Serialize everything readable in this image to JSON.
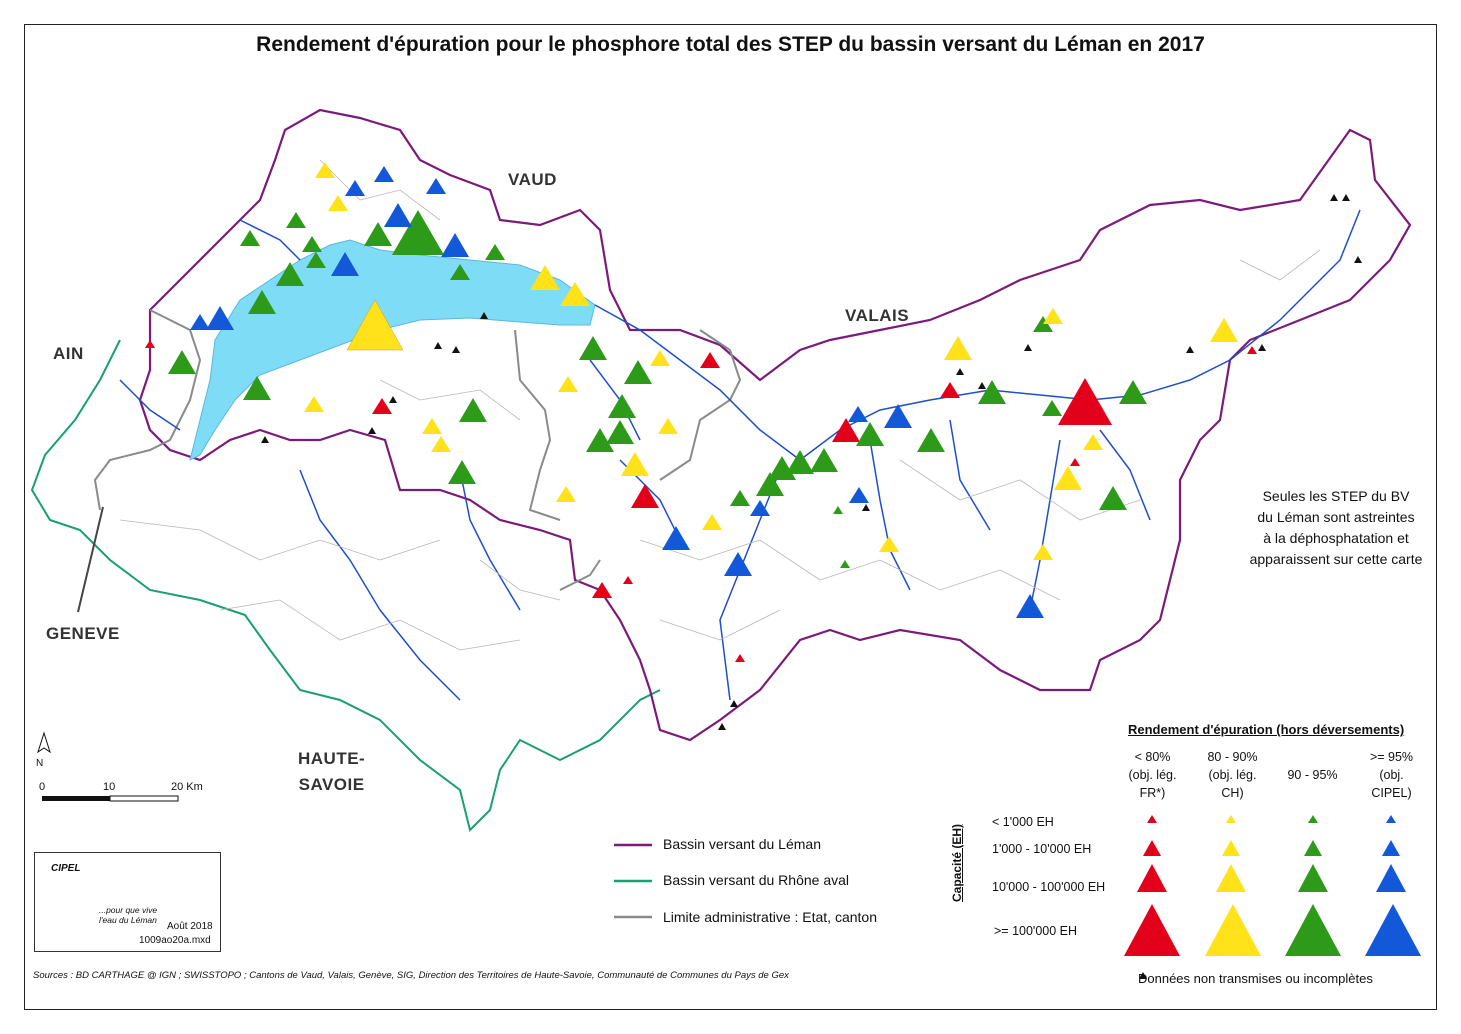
{
  "title": "Rendement d'épuration pour le phosphore total des STEP du bassin versant du Léman en 2017",
  "regions": {
    "vaud": "VAUD",
    "valais": "VALAIS",
    "ain": "AIN",
    "geneve": "GENEVE",
    "haute_savoie": "HAUTE-\nSAVOIE"
  },
  "note": "Seules les STEP du BV\ndu Léman sont astreintes\nà la déphosphatation et\napparaissent sur cette carte",
  "line_legend": {
    "basin_leman": "Bassin versant du Léman",
    "basin_rhone": "Bassin versant du Rhône aval",
    "admin_limit": "Limite administrative : Etat, canton"
  },
  "symbol_legend": {
    "title": "Rendement d'épuration (hors déversements)",
    "axis_label": "Capacité (EH)",
    "categories": [
      {
        "label": "< 80%\n(obj. lég.\nFR*)",
        "color": "#e2001a"
      },
      {
        "label": "80 - 90%\n(obj. lég.\nCH)",
        "color": "#ffe21a"
      },
      {
        "label": "90 - 95%",
        "color": "#2e9a1a"
      },
      {
        "label": ">= 95%\n(obj.\nCIPEL)",
        "color": "#1258d8"
      }
    ],
    "capacities": [
      "< 1'000 EH",
      "1'000 - 10'000 EH",
      "10'000 - 100'000 EH",
      ">= 100'000 EH"
    ],
    "no_data": "Données non transmises ou incomplètes"
  },
  "scale": {
    "ticks": [
      "0",
      "10",
      "20 Km"
    ]
  },
  "north": "N",
  "logo": {
    "name": "CIPEL",
    "slogan": "...pour que vive\nl'eau du Léman",
    "date": "Août 2018",
    "file": "1009ao20a.mxd"
  },
  "sources": "Sources : BD CARTHAGE @ IGN ; SWISSTOPO ; Cantons de Vaud, Valais, Genève, SIG, Direction des Territoires de Haute-Savoie, Communauté de Communes du Pays de Gex",
  "colors": {
    "lake": "#7fdcf7",
    "river": "#1f4fc8",
    "basin_leman": "#7b1a7b",
    "basin_rhone": "#18a070",
    "admin": "#8a8a8a"
  }
}
